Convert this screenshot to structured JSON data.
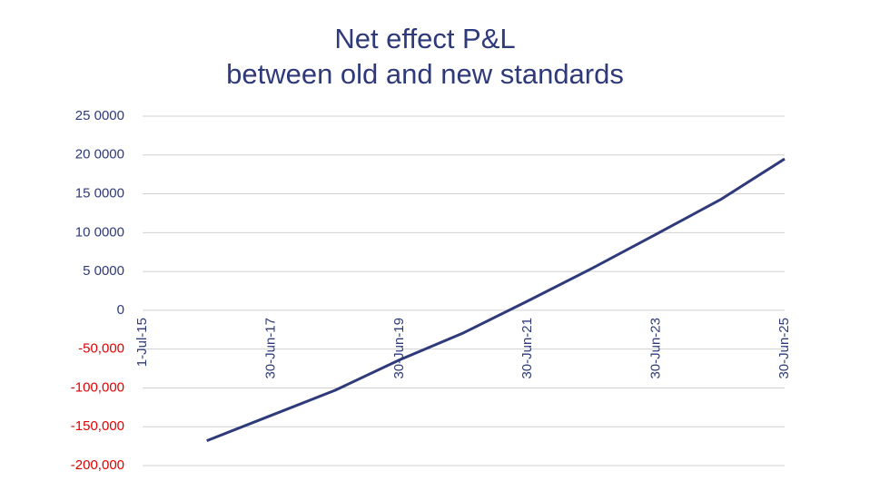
{
  "chart_data": {
    "type": "line",
    "title": [
      "Net effect P&L",
      "between old and new standards"
    ],
    "categories": [
      "1-Jul-15",
      null,
      "30-Jun-17",
      null,
      "30-Jun-19",
      null,
      "30-Jun-21",
      null,
      "30-Jun-23",
      null,
      "30-Jun-25"
    ],
    "series": [
      {
        "name": "Net effect P&L",
        "color": "#2e3a7a",
        "values": [
          null,
          -168000,
          -135500,
          -103000,
          -64000,
          -29000,
          12000,
          54000,
          98000,
          142500,
          195000
        ]
      }
    ],
    "ylim": [
      -200000,
      250000
    ],
    "yticks": [
      {
        "value": -200000,
        "label": "-200,000"
      },
      {
        "value": -150000,
        "label": "-150,000"
      },
      {
        "value": -100000,
        "label": "-100,000"
      },
      {
        "value": -50000,
        "label": "-50,000"
      },
      0,
      {
        "value": 50000,
        "label": "5 0000"
      },
      {
        "value": 100000,
        "label": "10 0000"
      },
      {
        "value": 150000,
        "label": "15 0000"
      },
      {
        "value": 200000,
        "label": "20 0000"
      },
      {
        "value": 250000,
        "label": "25 0000"
      }
    ],
    "grid": true,
    "tick_color": "#2e3a7a",
    "negative_tick_color": "#e00000"
  }
}
